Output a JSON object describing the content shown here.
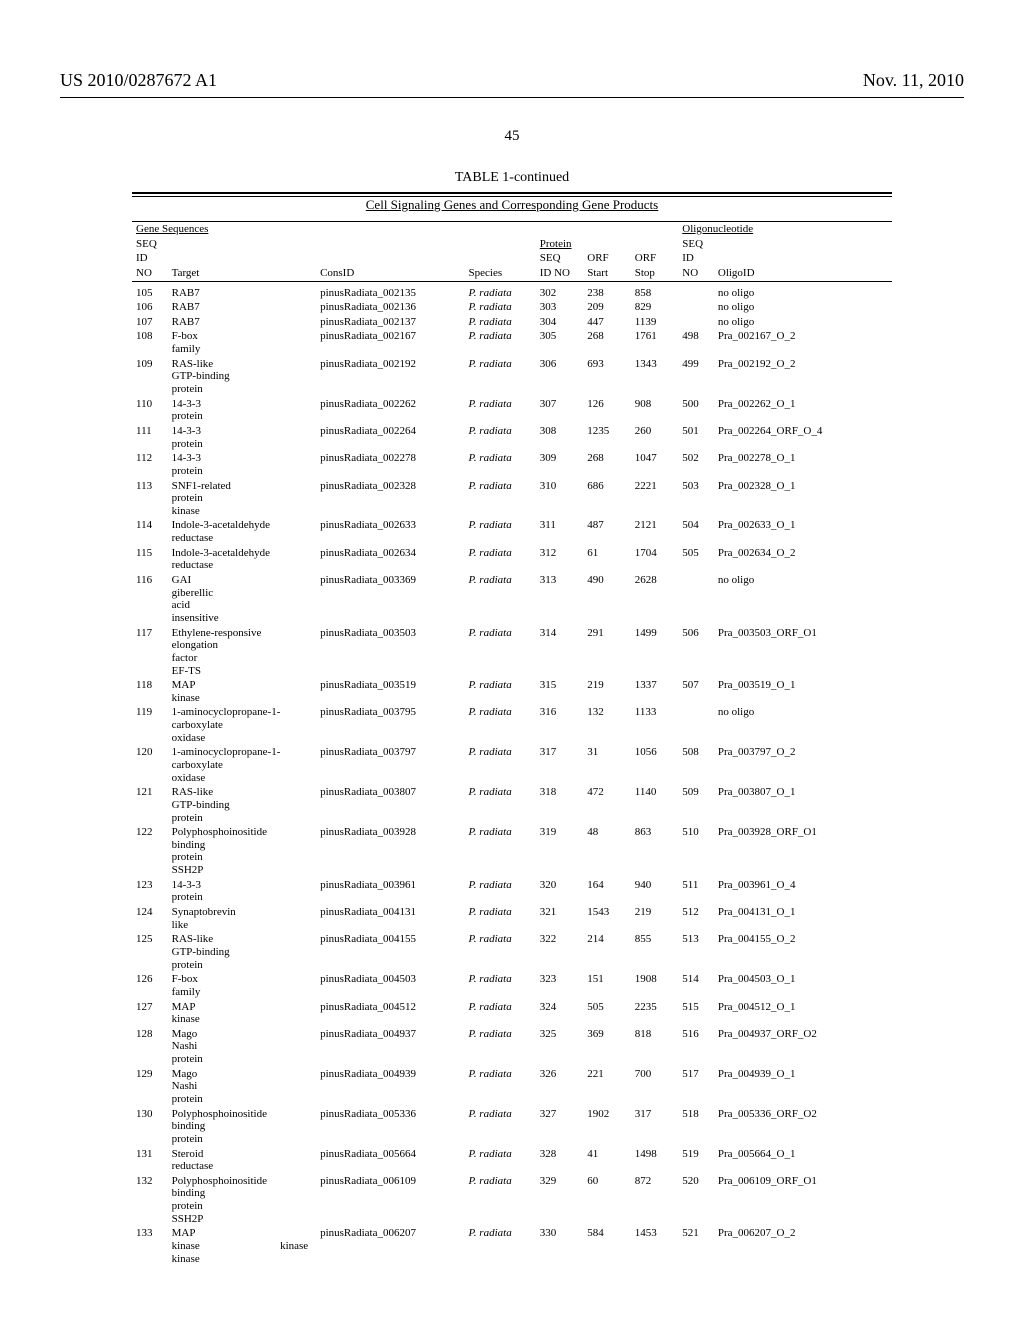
{
  "header": {
    "left": "US 2010/0287672 A1",
    "right": "Nov. 11, 2010"
  },
  "pageNumber": "45",
  "tableTitle": "TABLE 1-continued",
  "tableSubtitle": "Cell Signaling Genes and Corresponding Gene Products",
  "sectionHeads": {
    "gene": "Gene Sequences",
    "oligo": "Oligonucleotide",
    "protein": "Protein"
  },
  "columns": {
    "seqIdNoA": "SEQ",
    "seqIdNoB": "ID",
    "seqIdNoC": "NO",
    "target": "Target",
    "consId": "ConsID",
    "species": "Species",
    "pSeqA": "SEQ",
    "pSeqB": "ID NO",
    "orfStartA": "ORF",
    "orfStartB": "Start",
    "orfStopA": "ORF",
    "orfStopB": "Stop",
    "oSeqA": "SEQ",
    "oSeqB": "ID",
    "oSeqC": "NO",
    "oligoId": "OligoID"
  },
  "rows": [
    {
      "seq": "105",
      "target": "RAB7",
      "cons": "pinusRadiata_002135",
      "sp": "P. radiata",
      "pseq": "302",
      "orfs": "238",
      "orfe": "858",
      "oseq": "",
      "oligo": "no oligo"
    },
    {
      "seq": "106",
      "target": "RAB7",
      "cons": "pinusRadiata_002136",
      "sp": "P. radiata",
      "pseq": "303",
      "orfs": "209",
      "orfe": "829",
      "oseq": "",
      "oligo": "no oligo"
    },
    {
      "seq": "107",
      "target": "RAB7",
      "cons": "pinusRadiata_002137",
      "sp": "P. radiata",
      "pseq": "304",
      "orfs": "447",
      "orfe": "1139",
      "oseq": "",
      "oligo": "no oligo"
    },
    {
      "seq": "108",
      "target": "F-box family",
      "cons": "pinusRadiata_002167",
      "sp": "P. radiata",
      "pseq": "305",
      "orfs": "268",
      "orfe": "1761",
      "oseq": "498",
      "oligo": "Pra_002167_O_2"
    },
    {
      "seq": "109",
      "target": "RAS-like GTP-binding protein",
      "cons": "pinusRadiata_002192",
      "sp": "P. radiata",
      "pseq": "306",
      "orfs": "693",
      "orfe": "1343",
      "oseq": "499",
      "oligo": "Pra_002192_O_2"
    },
    {
      "seq": "110",
      "target": "14-3-3 protein",
      "cons": "pinusRadiata_002262",
      "sp": "P. radiata",
      "pseq": "307",
      "orfs": "126",
      "orfe": "908",
      "oseq": "500",
      "oligo": "Pra_002262_O_1"
    },
    {
      "seq": "111",
      "target": "14-3-3 protein",
      "cons": "pinusRadiata_002264",
      "sp": "P. radiata",
      "pseq": "308",
      "orfs": "1235",
      "orfe": "260",
      "oseq": "501",
      "oligo": "Pra_002264_ORF_O_4"
    },
    {
      "seq": "112",
      "target": "14-3-3 protein",
      "cons": "pinusRadiata_002278",
      "sp": "P. radiata",
      "pseq": "309",
      "orfs": "268",
      "orfe": "1047",
      "oseq": "502",
      "oligo": "Pra_002278_O_1"
    },
    {
      "seq": "113",
      "target": "SNF1-related protein kinase",
      "cons": "pinusRadiata_002328",
      "sp": "P. radiata",
      "pseq": "310",
      "orfs": "686",
      "orfe": "2221",
      "oseq": "503",
      "oligo": "Pra_002328_O_1"
    },
    {
      "seq": "114",
      "target": "Indole-3-acetaldehyde reductase",
      "cons": "pinusRadiata_002633",
      "sp": "P. radiata",
      "pseq": "311",
      "orfs": "487",
      "orfe": "2121",
      "oseq": "504",
      "oligo": "Pra_002633_O_1"
    },
    {
      "seq": "115",
      "target": "Indole-3-acetaldehyde reductase",
      "cons": "pinusRadiata_002634",
      "sp": "P. radiata",
      "pseq": "312",
      "orfs": "61",
      "orfe": "1704",
      "oseq": "505",
      "oligo": "Pra_002634_O_2"
    },
    {
      "seq": "116",
      "target": "GAI giberellic acid insensitive",
      "cons": "pinusRadiata_003369",
      "sp": "P. radiata",
      "pseq": "313",
      "orfs": "490",
      "orfe": "2628",
      "oseq": "",
      "oligo": "no oligo"
    },
    {
      "seq": "117",
      "target": "Ethylene-responsive elongation factor EF-TS",
      "cons": "pinusRadiata_003503",
      "sp": "P. radiata",
      "pseq": "314",
      "orfs": "291",
      "orfe": "1499",
      "oseq": "506",
      "oligo": "Pra_003503_ORF_O1"
    },
    {
      "seq": "118",
      "target": "MAP kinase",
      "cons": "pinusRadiata_003519",
      "sp": "P. radiata",
      "pseq": "315",
      "orfs": "219",
      "orfe": "1337",
      "oseq": "507",
      "oligo": "Pra_003519_O_1"
    },
    {
      "seq": "119",
      "target": "1-aminocyclopropane-1-carboxylate oxidase",
      "cons": "pinusRadiata_003795",
      "sp": "P. radiata",
      "pseq": "316",
      "orfs": "132",
      "orfe": "1133",
      "oseq": "",
      "oligo": "no oligo"
    },
    {
      "seq": "120",
      "target": "1-aminocyclopropane-1-carboxylate oxidase",
      "cons": "pinusRadiata_003797",
      "sp": "P. radiata",
      "pseq": "317",
      "orfs": "31",
      "orfe": "1056",
      "oseq": "508",
      "oligo": "Pra_003797_O_2"
    },
    {
      "seq": "121",
      "target": "RAS-like GTP-binding protein",
      "cons": "pinusRadiata_003807",
      "sp": "P. radiata",
      "pseq": "318",
      "orfs": "472",
      "orfe": "1140",
      "oseq": "509",
      "oligo": "Pra_003807_O_1"
    },
    {
      "seq": "122",
      "target": "Polyphosphoinositide binding protein SSH2P",
      "cons": "pinusRadiata_003928",
      "sp": "P. radiata",
      "pseq": "319",
      "orfs": "48",
      "orfe": "863",
      "oseq": "510",
      "oligo": "Pra_003928_ORF_O1"
    },
    {
      "seq": "123",
      "target": "14-3-3 protein",
      "cons": "pinusRadiata_003961",
      "sp": "P. radiata",
      "pseq": "320",
      "orfs": "164",
      "orfe": "940",
      "oseq": "511",
      "oligo": "Pra_003961_O_4"
    },
    {
      "seq": "124",
      "target": "Synaptobrevin like",
      "cons": "pinusRadiata_004131",
      "sp": "P. radiata",
      "pseq": "321",
      "orfs": "1543",
      "orfe": "219",
      "oseq": "512",
      "oligo": "Pra_004131_O_1"
    },
    {
      "seq": "125",
      "target": "RAS-like GTP-binding protein",
      "cons": "pinusRadiata_004155",
      "sp": "P. radiata",
      "pseq": "322",
      "orfs": "214",
      "orfe": "855",
      "oseq": "513",
      "oligo": "Pra_004155_O_2"
    },
    {
      "seq": "126",
      "target": "F-box family",
      "cons": "pinusRadiata_004503",
      "sp": "P. radiata",
      "pseq": "323",
      "orfs": "151",
      "orfe": "1908",
      "oseq": "514",
      "oligo": "Pra_004503_O_1"
    },
    {
      "seq": "127",
      "target": "MAP kinase",
      "cons": "pinusRadiata_004512",
      "sp": "P. radiata",
      "pseq": "324",
      "orfs": "505",
      "orfe": "2235",
      "oseq": "515",
      "oligo": "Pra_004512_O_1"
    },
    {
      "seq": "128",
      "target": "Mago Nashi protein",
      "cons": "pinusRadiata_004937",
      "sp": "P. radiata",
      "pseq": "325",
      "orfs": "369",
      "orfe": "818",
      "oseq": "516",
      "oligo": "Pra_004937_ORF_O2"
    },
    {
      "seq": "129",
      "target": "Mago Nashi protein",
      "cons": "pinusRadiata_004939",
      "sp": "P. radiata",
      "pseq": "326",
      "orfs": "221",
      "orfe": "700",
      "oseq": "517",
      "oligo": "Pra_004939_O_1"
    },
    {
      "seq": "130",
      "target": "Polyphosphoinositide binding protein",
      "cons": "pinusRadiata_005336",
      "sp": "P. radiata",
      "pseq": "327",
      "orfs": "1902",
      "orfe": "317",
      "oseq": "518",
      "oligo": "Pra_005336_ORF_O2"
    },
    {
      "seq": "131",
      "target": "Steroid reductase",
      "cons": "pinusRadiata_005664",
      "sp": "P. radiata",
      "pseq": "328",
      "orfs": "41",
      "orfe": "1498",
      "oseq": "519",
      "oligo": "Pra_005664_O_1"
    },
    {
      "seq": "132",
      "target": "Polyphosphoinositide binding protein SSH2P",
      "cons": "pinusRadiata_006109",
      "sp": "P. radiata",
      "pseq": "329",
      "orfs": "60",
      "orfe": "872",
      "oseq": "520",
      "oligo": "Pra_006109_ORF_O1"
    },
    {
      "seq": "133",
      "target": "MAP kinase kinase",
      "extra": "kinase",
      "cons": "pinusRadiata_006207",
      "sp": "P. radiata",
      "pseq": "330",
      "orfs": "584",
      "orfe": "1453",
      "oseq": "521",
      "oligo": "Pra_006207_O_2"
    }
  ]
}
